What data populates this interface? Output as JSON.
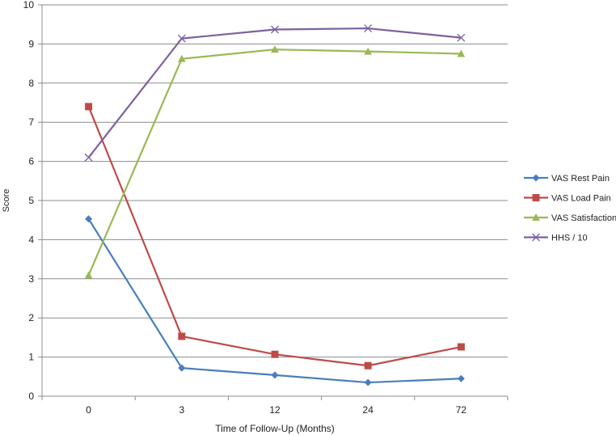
{
  "chart_data": {
    "type": "line",
    "categories": [
      "0",
      "3",
      "12",
      "24",
      "72"
    ],
    "xlabel": "Time of Follow-Up (Months)",
    "ylabel": "Score",
    "ylim": [
      0,
      10
    ],
    "yticks": [
      0,
      1,
      2,
      3,
      4,
      5,
      6,
      7,
      8,
      9,
      10
    ],
    "grid": true,
    "legend_position": "right",
    "series": [
      {
        "name": "VAS Rest Pain",
        "color": "#4a7ebb",
        "marker": "diamond",
        "values": [
          4.53,
          0.72,
          0.54,
          0.35,
          0.45
        ]
      },
      {
        "name": "VAS Load Pain",
        "color": "#be4b48",
        "marker": "square",
        "values": [
          7.4,
          1.53,
          1.07,
          0.78,
          1.26
        ]
      },
      {
        "name": "VAS Satisfaction",
        "color": "#98b954",
        "marker": "triangle",
        "values": [
          3.09,
          8.62,
          8.86,
          8.81,
          8.75
        ]
      },
      {
        "name": "HHS / 10",
        "color": "#7d60a0",
        "marker": "x",
        "values": [
          6.1,
          9.14,
          9.37,
          9.4,
          9.16
        ]
      }
    ]
  }
}
